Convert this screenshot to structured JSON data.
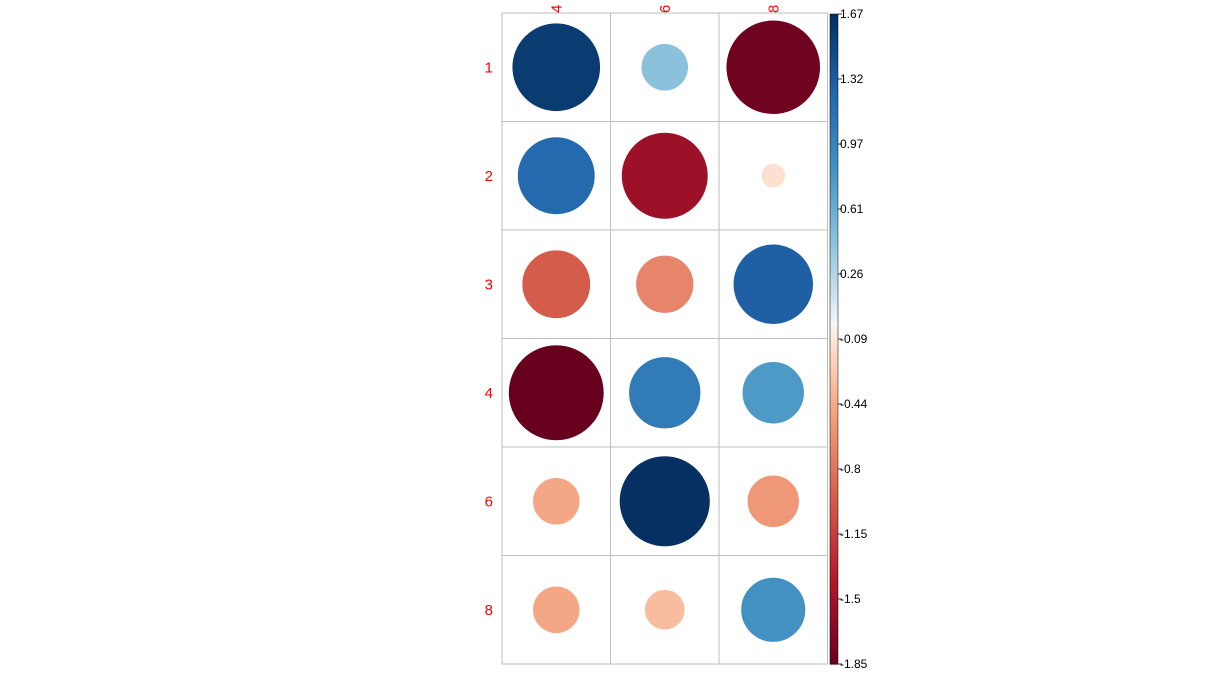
{
  "chart_data": {
    "type": "heatmap",
    "subtype": "correlation-plot-circles",
    "title": "",
    "rows": [
      "1",
      "2",
      "3",
      "4",
      "6",
      "8"
    ],
    "columns": [
      "4",
      "6",
      "8"
    ],
    "values": [
      [
        1.58,
        0.45,
        -1.8
      ],
      [
        1.22,
        -1.52,
        -0.12
      ],
      [
        -0.95,
        -0.68,
        1.3
      ],
      [
        -1.85,
        1.05,
        0.78
      ],
      [
        -0.45,
        1.67,
        -0.55
      ],
      [
        -0.45,
        -0.33,
        0.85
      ]
    ],
    "color_scale": {
      "min": -1.85,
      "max": 1.67,
      "low_color": "#67001f",
      "mid_color": "#f7f7f7",
      "high_color": "#053061",
      "ticks": [
        "1.67",
        "1.32",
        "0.97",
        "0.61",
        "0.26",
        "-0.09",
        "-0.44",
        "-0.8",
        "-1.15",
        "-1.5",
        "-1.85"
      ]
    },
    "label_color": "#ff0000",
    "grid": true,
    "legend_position": "right"
  }
}
